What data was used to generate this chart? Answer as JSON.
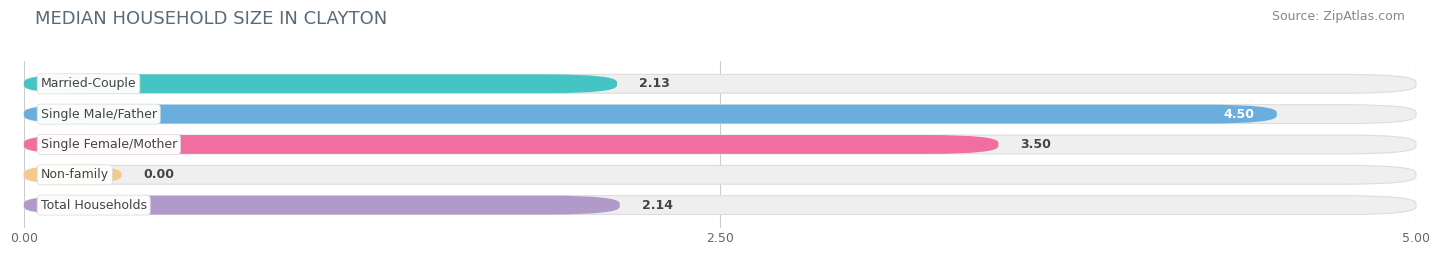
{
  "title": "MEDIAN HOUSEHOLD SIZE IN CLAYTON",
  "source": "Source: ZipAtlas.com",
  "categories": [
    "Married-Couple",
    "Single Male/Father",
    "Single Female/Mother",
    "Non-family",
    "Total Households"
  ],
  "values": [
    2.13,
    4.5,
    3.5,
    0.0,
    2.14
  ],
  "value_labels": [
    "2.13",
    "4.50",
    "3.50",
    "0.00",
    "2.14"
  ],
  "bar_colors": [
    "#45c4c4",
    "#6aaee0",
    "#f06fa0",
    "#f5c98a",
    "#b09aca"
  ],
  "bar_bg_color": "#efefef",
  "xlim": [
    0,
    5.0
  ],
  "xticks": [
    0.0,
    2.5,
    5.0
  ],
  "xtick_labels": [
    "0.00",
    "2.50",
    "5.00"
  ],
  "title_fontsize": 13,
  "source_fontsize": 9,
  "label_fontsize": 9,
  "value_fontsize": 9,
  "bar_height": 0.62,
  "background_color": "#ffffff",
  "grid_color": "#cccccc",
  "label_text_color": "#444444",
  "title_color": "#5a6a7a",
  "source_color": "#888888"
}
